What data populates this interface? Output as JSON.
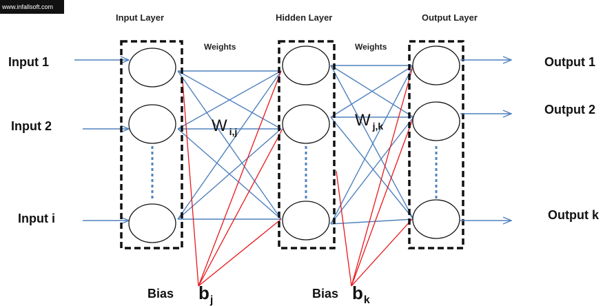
{
  "watermark": "www.infallsoft.com",
  "layers": {
    "input": "Input Layer",
    "hidden": "Hidden Layer",
    "output": "Output Layer"
  },
  "weights": {
    "left_label": "Weights",
    "right_label": "Weights",
    "left_symbol": "W",
    "left_subscript": "i,j",
    "right_symbol": "W",
    "right_subscript": "j,k"
  },
  "inputs": [
    "Input 1",
    "Input 2",
    "Input i"
  ],
  "outputs": [
    "Output 1",
    "Output 2",
    "Output k"
  ],
  "bias": {
    "left_label": "Bias",
    "left_symbol": "b",
    "left_subscript": "j",
    "right_label": "Bias",
    "right_symbol": "b",
    "right_subscript": "k"
  },
  "colors": {
    "connection": "#4f81bd",
    "bias_line": "#e8161a",
    "box_border": "#111111"
  }
}
